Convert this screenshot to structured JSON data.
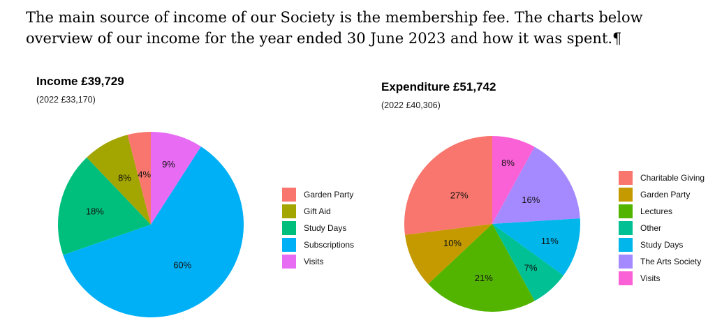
{
  "intro": {
    "line1": "The main source of income of our Society is the membership fee. The charts below",
    "line2": "overview of our income for the year ended 30 June 2023 and how it was spent.¶"
  },
  "chart_data": [
    {
      "type": "pie",
      "title": "Income £39,729",
      "subtitle": "(2022 £33,170)",
      "legend_position": "right",
      "categories": [
        "Garden Party",
        "Gift Aid",
        "Study Days",
        "Subscriptions",
        "Visits"
      ],
      "values": [
        4,
        8,
        18,
        60,
        9
      ],
      "labels": [
        "4%",
        "8%",
        "18%",
        "60%",
        "9%"
      ],
      "colors": [
        "#F8766D",
        "#A3A500",
        "#00BF7D",
        "#00B0F6",
        "#E76BF3"
      ]
    },
    {
      "type": "pie",
      "title": "Expenditure £51,742",
      "subtitle": "(2022 £40,306)",
      "legend_position": "right",
      "categories": [
        "Charitable Giving",
        "Garden Party",
        "Lectures",
        "Other",
        "Study Days",
        "The Arts Society",
        "Visits"
      ],
      "values": [
        27,
        10,
        21,
        7,
        11,
        16,
        8
      ],
      "labels": [
        "27%",
        "10%",
        "21%",
        "7%",
        "11%",
        "16%",
        "8%"
      ],
      "colors": [
        "#F8766D",
        "#C49A00",
        "#53B400",
        "#00C094",
        "#00B6EB",
        "#A58AFF",
        "#FB61D7"
      ]
    }
  ]
}
